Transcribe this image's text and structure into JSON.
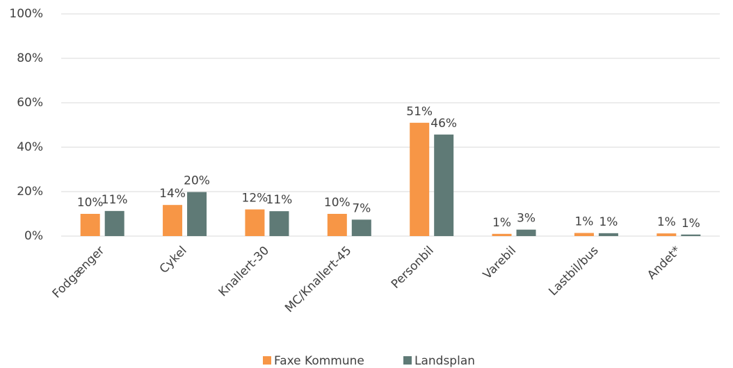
{
  "chart_data": {
    "type": "bar",
    "categories": [
      "Fodgænger",
      "Cykel",
      "Knallert-30",
      "MC/Knallert-45",
      "Personbil",
      "Varebil",
      "Lastbil/bus",
      "Andet*"
    ],
    "series": [
      {
        "name": "Faxe Kommune",
        "color": "#f79646",
        "values": [
          10,
          14,
          12,
          10,
          51,
          1,
          1.4,
          1.2
        ],
        "value_labels": [
          "10%",
          "14%",
          "12%",
          "10%",
          "51%",
          "1%",
          "1%",
          "1%"
        ]
      },
      {
        "name": "Landsplan",
        "color": "#5f7a76",
        "values": [
          11.3,
          19.8,
          11.2,
          7.4,
          45.7,
          2.9,
          1.3,
          0.7
        ],
        "value_labels": [
          "11%",
          "20%",
          "11%",
          "7%",
          "46%",
          "3%",
          "1%",
          "1%"
        ]
      }
    ],
    "ylim": [
      0,
      100
    ],
    "yticks": [
      {
        "value": 0,
        "label": "0%"
      },
      {
        "value": 20,
        "label": "20%"
      },
      {
        "value": 40,
        "label": "40%"
      },
      {
        "value": 60,
        "label": "60%"
      },
      {
        "value": 80,
        "label": "80%"
      },
      {
        "value": 100,
        "label": "100%"
      }
    ],
    "grid": true,
    "legend": "bottom"
  }
}
